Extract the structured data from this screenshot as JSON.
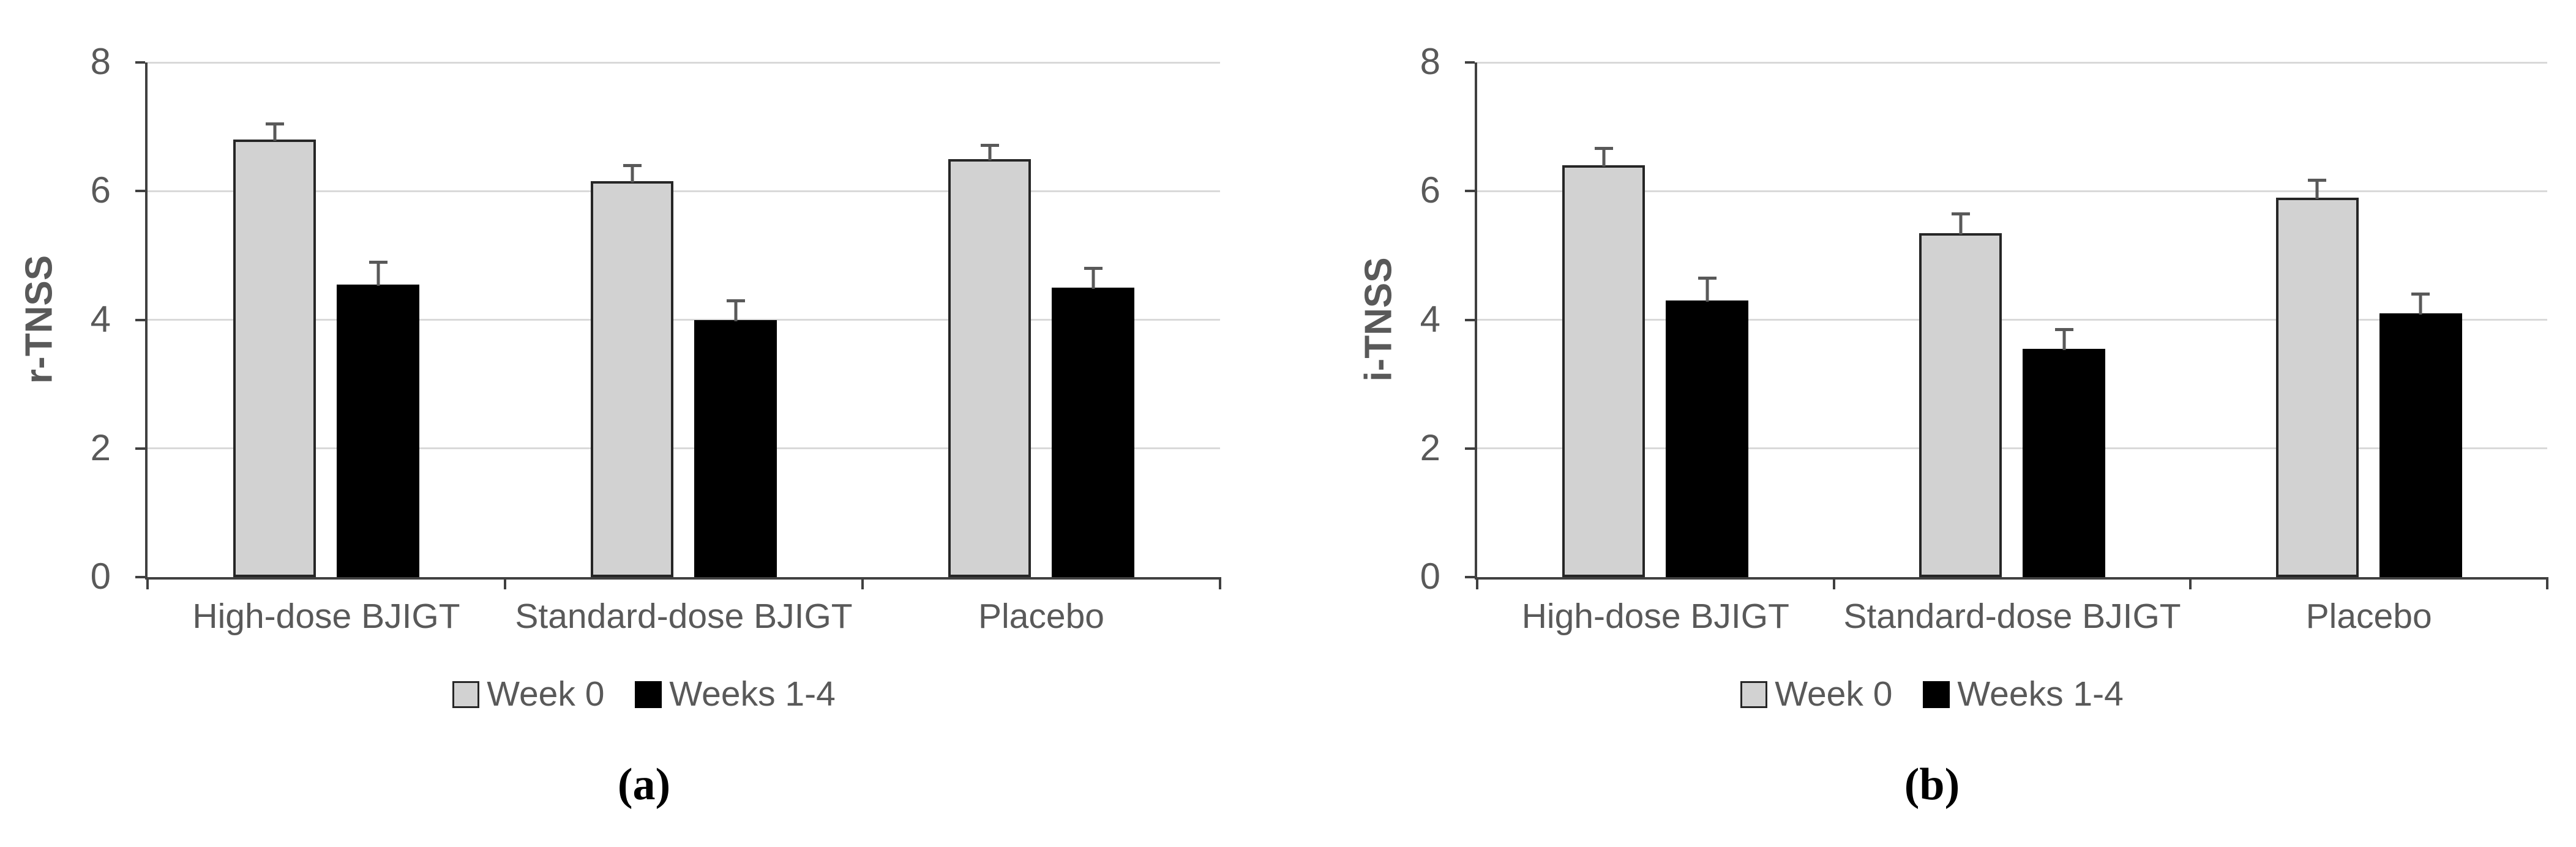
{
  "figure": {
    "captions": [
      "(a)",
      "(b)"
    ],
    "background": "#ffffff"
  },
  "chart_data": [
    {
      "type": "bar",
      "title": "",
      "xlabel": "",
      "ylabel": "r-TNSS",
      "ylim": [
        0,
        8
      ],
      "yticks": [
        0,
        2,
        4,
        6,
        8
      ],
      "grid": true,
      "legend_position": "bottom",
      "categories": [
        "High-dose BJIGT",
        "Standard-dose BJIGT",
        "Placebo"
      ],
      "series": [
        {
          "name": "Week 0",
          "values": [
            6.8,
            6.15,
            6.5
          ],
          "errors": [
            0.25,
            0.25,
            0.22
          ],
          "color": "#d2d2d2",
          "border": "#262626",
          "border_width": 4
        },
        {
          "name": "Weeks 1-4",
          "values": [
            4.55,
            4.0,
            4.5
          ],
          "errors": [
            0.35,
            0.3,
            0.3
          ],
          "color": "#000000",
          "border": "#000000",
          "border_width": 0
        }
      ],
      "grid_color": "#d9d9d9",
      "axis_color": "#404040",
      "text_color": "#595959",
      "error_bar_color": "#595959"
    },
    {
      "type": "bar",
      "title": "",
      "xlabel": "",
      "ylabel": "i-TNSS",
      "ylim": [
        0,
        8
      ],
      "yticks": [
        0,
        2,
        4,
        6,
        8
      ],
      "grid": true,
      "legend_position": "bottom",
      "categories": [
        "High-dose BJIGT",
        "Standard-dose BJIGT",
        "Placebo"
      ],
      "series": [
        {
          "name": "Week 0",
          "values": [
            6.4,
            5.35,
            5.9
          ],
          "errors": [
            0.27,
            0.3,
            0.27
          ],
          "color": "#d2d2d2",
          "border": "#262626",
          "border_width": 4
        },
        {
          "name": "Weeks 1-4",
          "values": [
            4.3,
            3.55,
            4.1
          ],
          "errors": [
            0.35,
            0.3,
            0.3
          ],
          "color": "#000000",
          "border": "#000000",
          "border_width": 0
        }
      ],
      "grid_color": "#d9d9d9",
      "axis_color": "#404040",
      "text_color": "#595959",
      "error_bar_color": "#595959"
    }
  ]
}
